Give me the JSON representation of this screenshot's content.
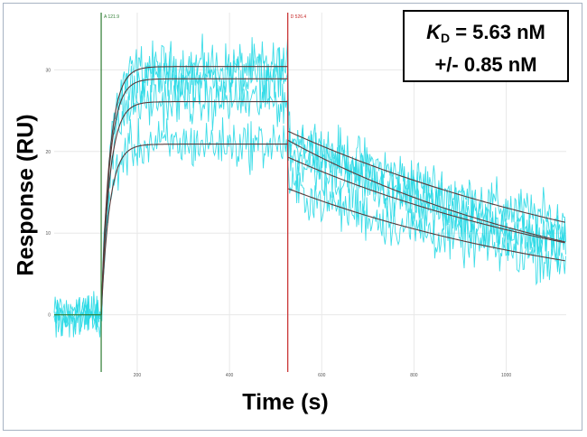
{
  "chart_data": {
    "type": "line",
    "xlabel": "Time (s)",
    "ylabel": "Response (RU)",
    "xlim": [
      20,
      1130
    ],
    "ylim": [
      -7,
      37
    ],
    "xticks": [
      200,
      400,
      600,
      800,
      1000
    ],
    "yticks": [
      0,
      10,
      20,
      30
    ],
    "grid": true,
    "markers": [
      {
        "label": "A 121.9",
        "x": 121.9,
        "color": "#2e7d32"
      },
      {
        "label": "D 526.4",
        "x": 526.4,
        "color": "#c62828"
      }
    ],
    "annotation": {
      "k": "K",
      "sub": "D",
      "line1": " = 5.63 nM",
      "line2": "+/- 0.85 nM"
    },
    "association_start": 121.9,
    "dissociation_start": 526.4,
    "fit_curves": [
      {
        "plateau": 30.4,
        "end": 11.3
      },
      {
        "plateau": 28.9,
        "end": 8.9
      },
      {
        "plateau": 26.1,
        "end": 8.8
      },
      {
        "plateau": 20.9,
        "end": 6.6
      }
    ],
    "raw_color": "#28d9e6",
    "fit_color": "#5a3a3a"
  }
}
